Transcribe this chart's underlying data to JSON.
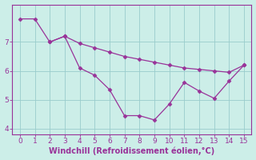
{
  "xlabel": "Windchill (Refroidissement éolien,°C)",
  "background_color": "#cceee8",
  "line_color": "#993399",
  "grid_color": "#99cccc",
  "series1_x": [
    0,
    1,
    2,
    3,
    4,
    5,
    6,
    7,
    8,
    9,
    10,
    11,
    12,
    13,
    14,
    15
  ],
  "series1_y": [
    7.8,
    7.8,
    7.0,
    7.2,
    6.95,
    6.8,
    6.65,
    6.5,
    6.4,
    6.3,
    6.2,
    6.1,
    6.05,
    6.0,
    5.95,
    6.2
  ],
  "series2_x": [
    2,
    3,
    4,
    5,
    6,
    7,
    8,
    9,
    10,
    11,
    12,
    13,
    14,
    15
  ],
  "series2_y": [
    7.0,
    7.2,
    6.1,
    5.85,
    5.35,
    4.45,
    4.45,
    4.3,
    4.85,
    5.6,
    5.3,
    5.05,
    5.65,
    6.2
  ],
  "ylim": [
    3.8,
    8.3
  ],
  "xlim": [
    -0.5,
    15.5
  ],
  "yticks": [
    4,
    5,
    6,
    7
  ],
  "xticks": [
    0,
    1,
    2,
    3,
    4,
    5,
    6,
    7,
    8,
    9,
    10,
    11,
    12,
    13,
    14,
    15
  ]
}
